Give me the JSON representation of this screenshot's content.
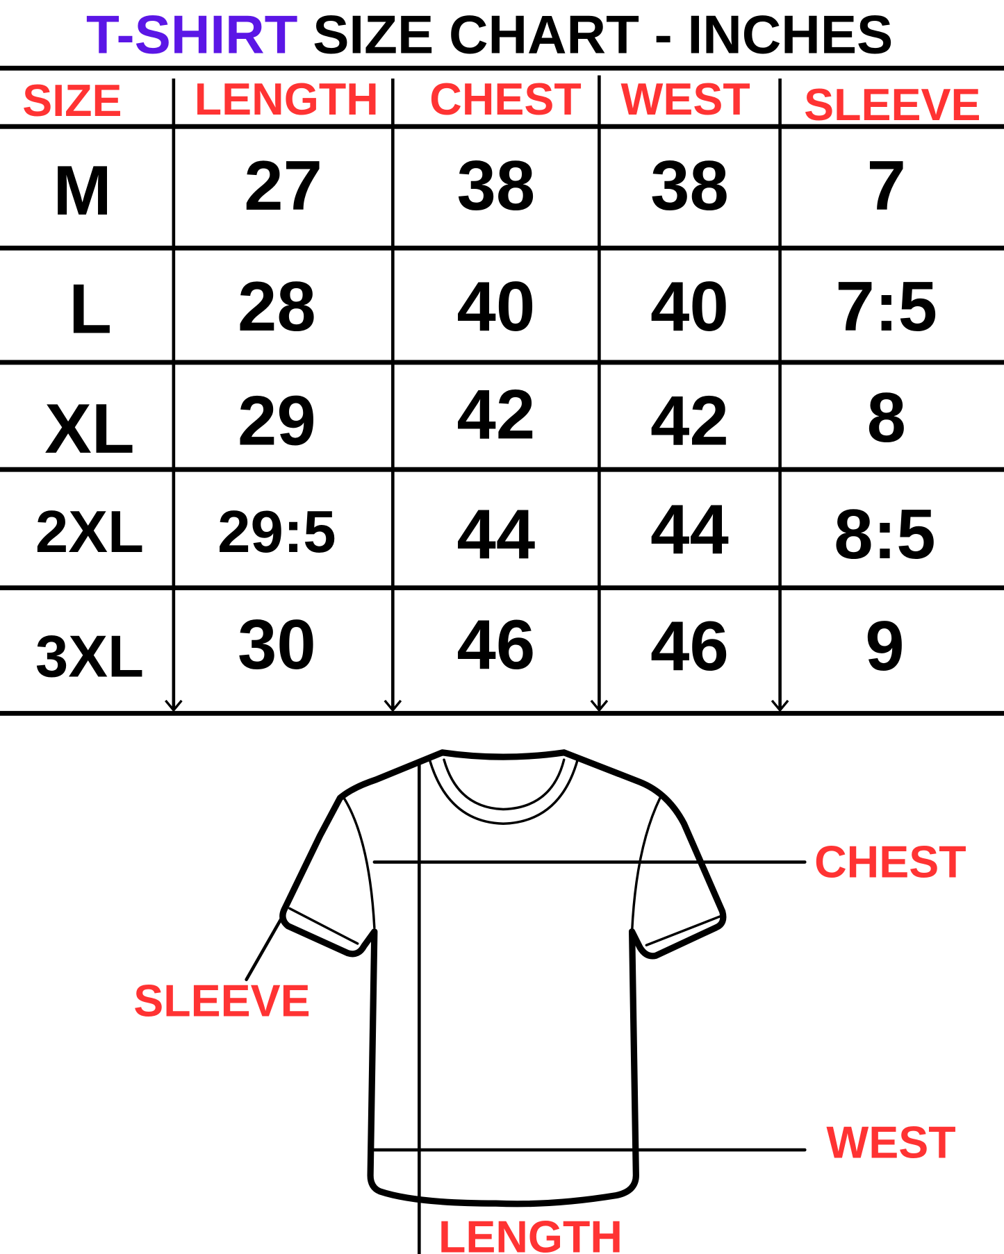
{
  "title": {
    "highlight": "T-SHIRT",
    "rest": "SIZE CHART - INCHES"
  },
  "colors": {
    "highlight": "#5b16e6",
    "label": "#ff3333",
    "ink": "#000000"
  },
  "table": {
    "headers": [
      "SIZE",
      "LENGTH",
      "CHEST",
      "WEST",
      "SLEEVE"
    ],
    "rows": [
      [
        "M",
        "27",
        "38",
        "38",
        "7"
      ],
      [
        "L",
        "28",
        "40",
        "40",
        "7:5"
      ],
      [
        "XL",
        "29",
        "42",
        "42",
        "8"
      ],
      [
        "2XL",
        "29:5",
        "44",
        "44",
        "8:5"
      ],
      [
        "3XL",
        "30",
        "46",
        "46",
        "9"
      ]
    ]
  },
  "diagram": {
    "labels": {
      "chest": "CHEST",
      "sleeve": "SLEEVE",
      "west": "WEST",
      "length": "LENGTH"
    }
  }
}
